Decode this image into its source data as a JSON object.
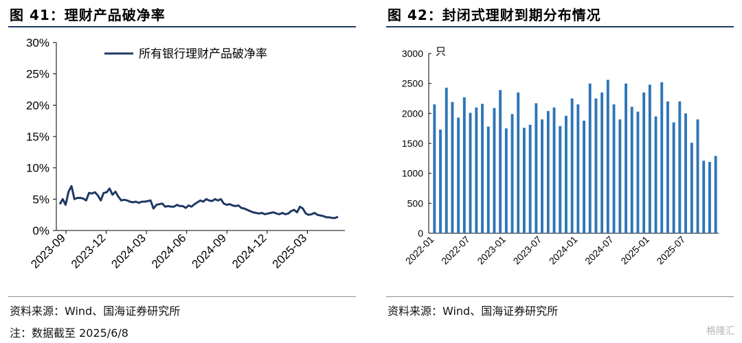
{
  "left": {
    "title": "图 41：理财产品破净率",
    "source": "资料来源：Wind、国海证券研究所",
    "note": "注：数据截至 2025/6/8"
  },
  "right": {
    "title": "图 42：封闭式理财到期分布情况",
    "source": "资料来源：Wind、国海证券研究所"
  },
  "watermark": "格隆汇",
  "chart_data": [
    {
      "type": "line",
      "title": "",
      "legend": [
        "所有银行理财产品破净率"
      ],
      "legend_position": "top",
      "ylim": [
        0,
        30
      ],
      "yticks": [
        "0%",
        "5%",
        "10%",
        "15%",
        "20%",
        "25%",
        "30%"
      ],
      "xticks": [
        "2023-09",
        "2023-12",
        "2024-03",
        "2024-06",
        "2024-09",
        "2024-12",
        "2025-03"
      ],
      "grid": false,
      "color": "#1f3864",
      "series": [
        {
          "name": "所有银行理财产品破净率",
          "values": [
            4.2,
            5.0,
            4.1,
            6.2,
            7.1,
            5.0,
            5.2,
            5.2,
            5.1,
            4.8,
            6.0,
            5.9,
            6.1,
            5.6,
            4.8,
            6.0,
            6.1,
            6.7,
            5.7,
            6.2,
            5.4,
            4.8,
            4.9,
            4.8,
            4.6,
            4.5,
            4.6,
            4.4,
            4.6,
            4.6,
            4.7,
            4.8,
            3.5,
            4.1,
            4.2,
            4.3,
            3.8,
            3.9,
            3.8,
            3.8,
            4.1,
            3.9,
            3.9,
            3.6,
            4.0,
            3.8,
            4.2,
            4.5,
            4.8,
            4.6,
            5.0,
            4.8,
            4.7,
            5.0,
            4.8,
            5.0,
            4.3,
            4.1,
            4.2,
            4.0,
            3.9,
            4.0,
            3.6,
            3.5,
            3.3,
            3.1,
            2.9,
            2.8,
            2.7,
            2.8,
            2.6,
            2.7,
            2.8,
            2.9,
            2.7,
            2.6,
            2.8,
            2.6,
            2.7,
            3.1,
            3.3,
            2.9,
            3.8,
            3.5,
            2.7,
            2.5,
            2.6,
            2.8,
            2.5,
            2.4,
            2.3,
            2.1,
            2.1,
            2.0,
            2.0,
            2.2
          ]
        }
      ]
    },
    {
      "type": "bar",
      "title": "",
      "unit_label": "只",
      "ylim": [
        0,
        3000
      ],
      "yticks": [
        "0",
        "500",
        "1000",
        "1500",
        "2000",
        "2500",
        "3000"
      ],
      "xticks": [
        "2022-01",
        "2022-07",
        "2023-01",
        "2023-07",
        "2024-01",
        "2024-07",
        "2025-01",
        "2025-07"
      ],
      "grid": false,
      "color": "#2e75b6",
      "categories": [
        "2022-01",
        "2022-02",
        "2022-03",
        "2022-04",
        "2022-05",
        "2022-06",
        "2022-07",
        "2022-08",
        "2022-09",
        "2022-10",
        "2022-11",
        "2022-12",
        "2023-01",
        "2023-02",
        "2023-03",
        "2023-04",
        "2023-05",
        "2023-06",
        "2023-07",
        "2023-08",
        "2023-09",
        "2023-10",
        "2023-11",
        "2023-12",
        "2024-01",
        "2024-02",
        "2024-03",
        "2024-04",
        "2024-05",
        "2024-06",
        "2024-07",
        "2024-08",
        "2024-09",
        "2024-10",
        "2024-11",
        "2024-12",
        "2025-01",
        "2025-02",
        "2025-03",
        "2025-04",
        "2025-05",
        "2025-06",
        "2025-07",
        "2025-08",
        "2025-09",
        "2025-10",
        "2025-11",
        "2025-12"
      ],
      "values": [
        2150,
        1730,
        2430,
        2190,
        1930,
        2270,
        2010,
        2100,
        2160,
        1780,
        2090,
        2390,
        1750,
        1990,
        2350,
        1760,
        1810,
        2170,
        1900,
        2040,
        2100,
        1790,
        1960,
        2250,
        2150,
        1880,
        2500,
        2250,
        2350,
        2560,
        2150,
        1900,
        2500,
        2110,
        2030,
        2350,
        2480,
        1950,
        2520,
        2200,
        1850,
        2200,
        2000,
        1510,
        1900,
        1210,
        1190,
        1290
      ]
    }
  ]
}
